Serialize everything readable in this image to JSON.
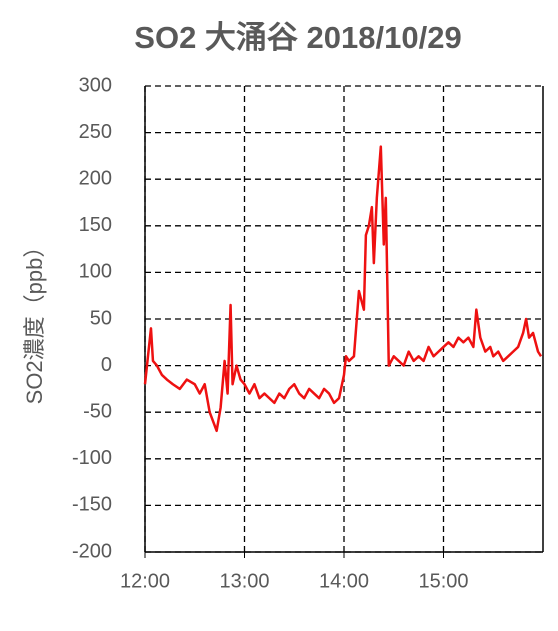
{
  "chart_data": {
    "type": "line",
    "title": "SO2 大涌谷  2018/10/29",
    "y_label": "SO2濃度（ppb）",
    "x": [
      12.0,
      12.03,
      12.06,
      12.08,
      12.12,
      12.17,
      12.22,
      12.28,
      12.35,
      12.42,
      12.5,
      12.55,
      12.6,
      12.65,
      12.72,
      12.76,
      12.8,
      12.83,
      12.86,
      12.88,
      12.92,
      12.96,
      13.0,
      13.05,
      13.1,
      13.15,
      13.2,
      13.3,
      13.35,
      13.4,
      13.45,
      13.5,
      13.55,
      13.6,
      13.65,
      13.7,
      13.75,
      13.8,
      13.85,
      13.9,
      13.95,
      14.0,
      14.02,
      14.05,
      14.1,
      14.15,
      14.2,
      14.22,
      14.25,
      14.28,
      14.3,
      14.33,
      14.37,
      14.4,
      14.42,
      14.45,
      14.5,
      14.55,
      14.6,
      14.65,
      14.7,
      14.75,
      14.8,
      14.85,
      14.9,
      14.95,
      15.0,
      15.05,
      15.1,
      15.15,
      15.2,
      15.25,
      15.3,
      15.33,
      15.37,
      15.42,
      15.47,
      15.5,
      15.55,
      15.6,
      15.65,
      15.7,
      15.75,
      15.8,
      15.83,
      15.86,
      15.9,
      15.95,
      15.98
    ],
    "series": [
      {
        "name": "SO2",
        "color": "#ee1111",
        "values": [
          -20,
          10,
          40,
          5,
          0,
          -10,
          -15,
          -20,
          -25,
          -15,
          -20,
          -30,
          -20,
          -50,
          -70,
          -45,
          5,
          -30,
          65,
          -20,
          0,
          -15,
          -20,
          -30,
          -20,
          -35,
          -30,
          -40,
          -30,
          -35,
          -25,
          -20,
          -30,
          -35,
          -25,
          -30,
          -35,
          -25,
          -30,
          -40,
          -35,
          -10,
          10,
          5,
          10,
          80,
          60,
          140,
          150,
          170,
          110,
          180,
          235,
          130,
          180,
          0,
          10,
          5,
          0,
          15,
          5,
          10,
          5,
          20,
          10,
          15,
          20,
          25,
          20,
          30,
          25,
          30,
          20,
          60,
          30,
          15,
          20,
          10,
          15,
          5,
          10,
          15,
          20,
          35,
          50,
          30,
          35,
          15,
          10
        ]
      }
    ],
    "xlim": [
      12,
      16
    ],
    "xticks": [
      {
        "value": 12,
        "label": "12:00"
      },
      {
        "value": 13,
        "label": "13:00"
      },
      {
        "value": 14,
        "label": "14:00"
      },
      {
        "value": 15,
        "label": "15:00"
      }
    ],
    "ylim": [
      -200,
      300
    ],
    "yticks": [
      -200,
      -150,
      -100,
      -50,
      0,
      50,
      100,
      150,
      200,
      250,
      300
    ],
    "grid": true
  }
}
